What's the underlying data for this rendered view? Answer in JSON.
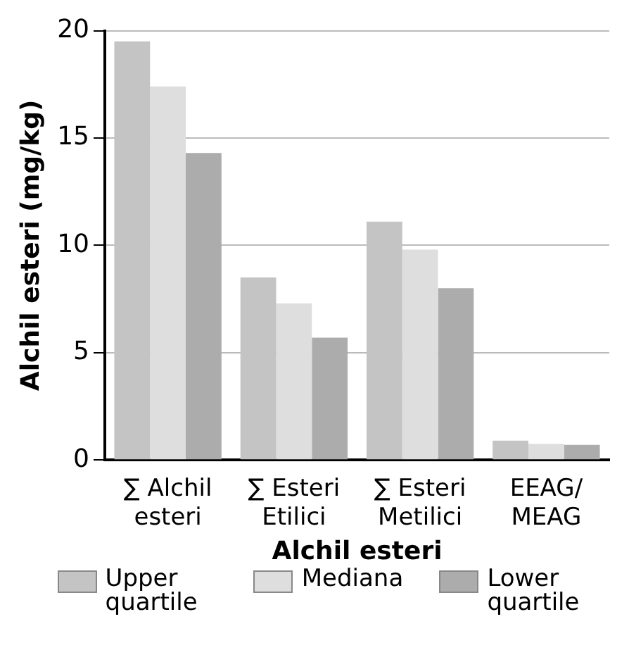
{
  "chart_data": {
    "type": "bar",
    "xlabel": "Alchil esteri",
    "ylabel": "Alchil esteri (mg/kg)",
    "categories": [
      "∑ Alchil esteri",
      "∑ Esteri Etilici",
      "∑ Esteri Metilici",
      "EEAG/ MEAG"
    ],
    "series": [
      {
        "name": "Upper quartile",
        "color": "#c4c4c4",
        "values": [
          19.5,
          8.5,
          11.1,
          0.9
        ]
      },
      {
        "name": "Mediana",
        "color": "#dedede",
        "values": [
          17.4,
          7.3,
          9.8,
          0.75
        ]
      },
      {
        "name": "Lower quartile",
        "color": "#acacac",
        "values": [
          14.3,
          5.7,
          8.0,
          0.7
        ]
      }
    ],
    "ylim": [
      0,
      20
    ],
    "yticks": [
      0,
      5,
      10,
      15,
      20
    ],
    "grid": "y",
    "legend": "bottom"
  }
}
